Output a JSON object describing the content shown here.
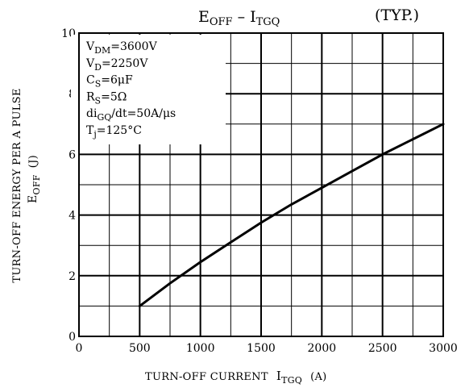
{
  "chart_data": {
    "type": "line",
    "title_main": "E",
    "title_main_sub": "OFF",
    "title_dash": "–",
    "title_second": "I",
    "title_second_sub": "TGQ",
    "title_note": "(TYP.)",
    "xlabel": "TURN-OFF CURRENT",
    "xlabel_symbol": "I",
    "xlabel_symbol_sub": "TGQ",
    "xlabel_unit": "(A)",
    "ylabel_line1": "TURN-OFF ENERGY PER A PULSE",
    "ylabel_symbol": "E",
    "ylabel_symbol_sub": "OFF",
    "ylabel_unit": "(J)",
    "xlim": [
      0,
      3000
    ],
    "ylim": [
      0,
      10
    ],
    "x_ticks": [
      "0",
      "500",
      "1000",
      "1500",
      "2000",
      "2500",
      "3000"
    ],
    "y_ticks": [
      "0",
      "2",
      "4",
      "6",
      "8",
      "10"
    ],
    "grid": true,
    "conditions": [
      {
        "base": "V",
        "sub": "DM",
        "rest": "=3600V"
      },
      {
        "base": "V",
        "sub": "D",
        "rest": "=2250V"
      },
      {
        "base": "C",
        "sub": "S",
        "rest": "=6μF"
      },
      {
        "base": "R",
        "sub": "S",
        "rest": "=5Ω"
      },
      {
        "base": "di",
        "sub": "GQ",
        "rest": "/dt=50A/μs"
      },
      {
        "base": "T",
        "sub": "j",
        "rest": "=125°C"
      }
    ],
    "series": [
      {
        "x": [
          500,
          750,
          1000,
          1250,
          1500,
          1750,
          2000,
          2250,
          2500,
          2750,
          3000
        ],
        "y": [
          1.0,
          1.75,
          2.45,
          3.1,
          3.75,
          4.35,
          4.9,
          5.45,
          6.0,
          6.5,
          7.0
        ]
      }
    ]
  }
}
